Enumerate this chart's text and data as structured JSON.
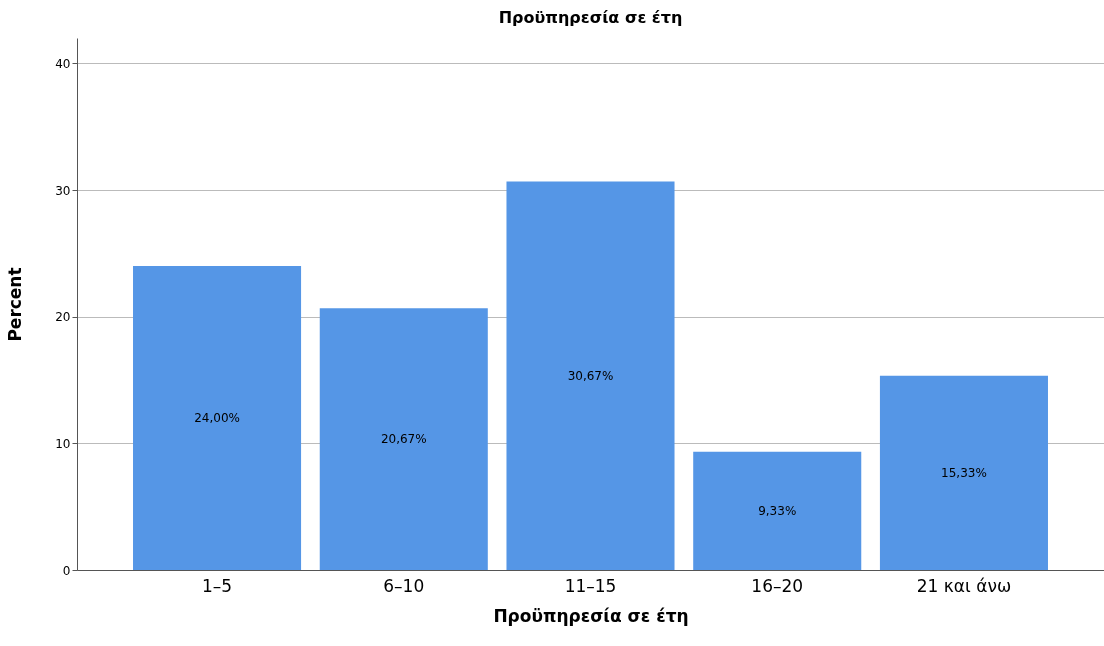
{
  "chart_data": {
    "type": "bar",
    "title": "Προϋπηρεσία σε έτη",
    "xlabel": "Προϋπηρεσία σε έτη",
    "ylabel": "Percent",
    "categories": [
      "1–5",
      "6–10",
      "11–15",
      "16–20",
      "21 και άνω"
    ],
    "values": [
      24.0,
      20.67,
      30.67,
      9.33,
      15.33
    ],
    "value_labels": [
      "24,00%",
      "20,67%",
      "30,67%",
      "9,33%",
      "15,33%"
    ],
    "color": "#5596e6",
    "ylim": [
      0,
      42
    ],
    "yticks": [
      0,
      10,
      20,
      30,
      40
    ],
    "grid": "y"
  }
}
